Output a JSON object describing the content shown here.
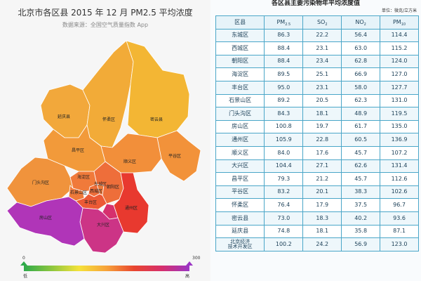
{
  "map": {
    "title": "北京市各区县 2015 年 12 月 PM2.5 平均浓度",
    "source": "数据来源：全国空气质量指数 App",
    "districts": [
      {
        "name": "延庆县",
        "pm25": 74.8,
        "color": "#f2a83b"
      },
      {
        "name": "怀柔区",
        "pm25": 76.4,
        "color": "#f2ab38"
      },
      {
        "name": "密云县",
        "pm25": 73.0,
        "color": "#f3b634"
      },
      {
        "name": "昌平区",
        "pm25": 79.3,
        "color": "#f29a3a"
      },
      {
        "name": "平谷区",
        "pm25": 83.2,
        "color": "#f2923a"
      },
      {
        "name": "顺义区",
        "pm25": 84.0,
        "color": "#f28f3a"
      },
      {
        "name": "门头沟区",
        "pm25": 84.3,
        "color": "#f0933c"
      },
      {
        "name": "海淀区",
        "pm25": 89.5,
        "color": "#f07a3a"
      },
      {
        "name": "石景山区",
        "pm25": 89.2,
        "color": "#ef7a3a"
      },
      {
        "name": "西城区",
        "pm25": 88.4,
        "color": "#ee6e3a"
      },
      {
        "name": "东城区",
        "pm25": 86.3,
        "color": "#ee7a3a"
      },
      {
        "name": "朝阳区",
        "pm25": 88.4,
        "color": "#ee6e3a"
      },
      {
        "name": "丰台区",
        "pm25": 95.0,
        "color": "#ec5a35"
      },
      {
        "name": "通州区",
        "pm25": 105.9,
        "color": "#e8392f"
      },
      {
        "name": "大兴区",
        "pm25": 104.4,
        "color": "#cc3486"
      },
      {
        "name": "房山区",
        "pm25": 100.8,
        "color": "#b035b8"
      },
      {
        "name": "北京经济技术开发区",
        "pm25": 100.2,
        "color": "#d6306e"
      }
    ],
    "legend": {
      "min": "0",
      "max": "300",
      "low_label": "低",
      "high_label": "高",
      "low_color": "#2eaa4a",
      "high_color": "#9b35c5"
    }
  },
  "table": {
    "title": "各区县主要污染物年平均浓度值",
    "unit": "单位：微克/立方米",
    "headers": {
      "name": "区县",
      "pm25": "PM",
      "pm25_sub": "2.5",
      "so2": "SO",
      "so2_sub": "2",
      "no2": "NO",
      "no2_sub": "2",
      "pm10": "PM",
      "pm10_sub": "10"
    },
    "rows": [
      {
        "name": "东城区",
        "pm25": "86.3",
        "so2": "22.2",
        "no2": "56.4",
        "pm10": "114.4"
      },
      {
        "name": "西城区",
        "pm25": "88.4",
        "so2": "23.1",
        "no2": "63.0",
        "pm10": "115.2"
      },
      {
        "name": "朝阳区",
        "pm25": "88.4",
        "so2": "23.4",
        "no2": "62.8",
        "pm10": "124.0"
      },
      {
        "name": "海淀区",
        "pm25": "89.5",
        "so2": "25.1",
        "no2": "66.9",
        "pm10": "127.0"
      },
      {
        "name": "丰台区",
        "pm25": "95.0",
        "so2": "23.1",
        "no2": "58.0",
        "pm10": "127.7"
      },
      {
        "name": "石景山区",
        "pm25": "89.2",
        "so2": "20.5",
        "no2": "62.3",
        "pm10": "131.0"
      },
      {
        "name": "门头沟区",
        "pm25": "84.3",
        "so2": "18.1",
        "no2": "48.9",
        "pm10": "119.5"
      },
      {
        "name": "房山区",
        "pm25": "100.8",
        "so2": "19.7",
        "no2": "61.7",
        "pm10": "135.0"
      },
      {
        "name": "通州区",
        "pm25": "105.9",
        "so2": "22.8",
        "no2": "60.5",
        "pm10": "136.9"
      },
      {
        "name": "顺义区",
        "pm25": "84.0",
        "so2": "17.6",
        "no2": "45.7",
        "pm10": "107.2"
      },
      {
        "name": "大兴区",
        "pm25": "104.4",
        "so2": "27.1",
        "no2": "62.6",
        "pm10": "131.4"
      },
      {
        "name": "昌平区",
        "pm25": "79.3",
        "so2": "21.2",
        "no2": "45.7",
        "pm10": "112.6"
      },
      {
        "name": "平谷区",
        "pm25": "83.2",
        "so2": "20.1",
        "no2": "38.3",
        "pm10": "102.6"
      },
      {
        "name": "怀柔区",
        "pm25": "76.4",
        "so2": "17.9",
        "no2": "37.5",
        "pm10": "96.7"
      },
      {
        "name": "密云县",
        "pm25": "73.0",
        "so2": "18.3",
        "no2": "40.2",
        "pm10": "93.6"
      },
      {
        "name": "延庆县",
        "pm25": "74.8",
        "so2": "18.1",
        "no2": "35.8",
        "pm10": "87.1"
      },
      {
        "name": "北京经济\n技术开发区",
        "pm25": "100.2",
        "so2": "24.2",
        "no2": "56.9",
        "pm10": "123.0"
      }
    ]
  }
}
